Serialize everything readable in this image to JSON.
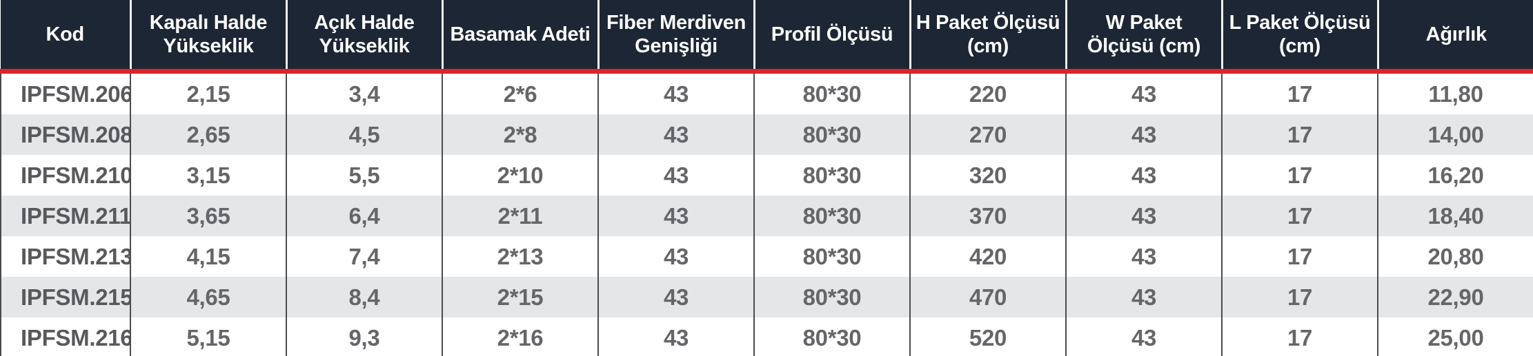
{
  "colors": {
    "header_bg": "#1d2634",
    "accent_red": "#dd2428",
    "stripe_gray": "#e5e6e8",
    "text_gray": "#656669",
    "border_dark": "#4a4b4d"
  },
  "table": {
    "columns": [
      "Kod",
      "Kapalı Halde Yükseklik",
      "Açık Halde Yükseklik",
      "Basamak Adeti",
      "Fiber Merdiven Genişliği",
      "Profil Ölçüsü",
      "H Paket Ölçüsü (cm)",
      "W Paket Ölçüsü (cm)",
      "L Paket Ölçüsü (cm)",
      "Ağırlık"
    ],
    "rows": [
      [
        "IPFSM.206",
        "2,15",
        "3,4",
        "2*6",
        "43",
        "80*30",
        "220",
        "43",
        "17",
        "11,80"
      ],
      [
        "IPFSM.208",
        "2,65",
        "4,5",
        "2*8",
        "43",
        "80*30",
        "270",
        "43",
        "17",
        "14,00"
      ],
      [
        "IPFSM.210",
        "3,15",
        "5,5",
        "2*10",
        "43",
        "80*30",
        "320",
        "43",
        "17",
        "16,20"
      ],
      [
        "IPFSM.211",
        "3,65",
        "6,4",
        "2*11",
        "43",
        "80*30",
        "370",
        "43",
        "17",
        "18,40"
      ],
      [
        "IPFSM.213",
        "4,15",
        "7,4",
        "2*13",
        "43",
        "80*30",
        "420",
        "43",
        "17",
        "20,80"
      ],
      [
        "IPFSM.215",
        "4,65",
        "8,4",
        "2*15",
        "43",
        "80*30",
        "470",
        "43",
        "17",
        "22,90"
      ],
      [
        "IPFSM.216",
        "5,15",
        "9,3",
        "2*16",
        "43",
        "80*30",
        "520",
        "43",
        "17",
        "25,00"
      ]
    ]
  }
}
